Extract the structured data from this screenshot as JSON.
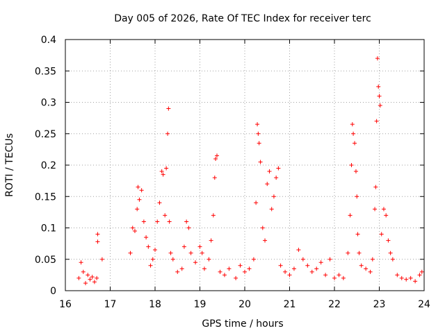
{
  "chart_data": {
    "type": "scatter",
    "title": "Day 005 of 2026, Rate Of TEC Index for receiver terc",
    "xlabel": "GPS time / hours",
    "ylabel": "ROTI / TECUs",
    "xlim": [
      16,
      24
    ],
    "ylim": [
      0,
      0.4
    ],
    "grid": true,
    "x_ticks": [
      16,
      17,
      18,
      19,
      20,
      21,
      22,
      23,
      24
    ],
    "x_tick_labels": [
      "16",
      "17",
      "18",
      "19",
      "20",
      "21",
      "22",
      "23",
      "24"
    ],
    "y_ticks": [
      0,
      0.05,
      0.1,
      0.15,
      0.2,
      0.25,
      0.3,
      0.35,
      0.4
    ],
    "y_tick_labels": [
      "0",
      "0.05",
      "0.1",
      "0.15",
      "0.2",
      "0.25",
      "0.3",
      "0.35",
      "0.4"
    ],
    "marker": "+",
    "color": "#ff0000",
    "series": [
      {
        "name": "ROTI",
        "points": [
          [
            16.3,
            0.02
          ],
          [
            16.35,
            0.045
          ],
          [
            16.4,
            0.03
          ],
          [
            16.45,
            0.012
          ],
          [
            16.5,
            0.025
          ],
          [
            16.55,
            0.018
          ],
          [
            16.6,
            0.022
          ],
          [
            16.65,
            0.014
          ],
          [
            16.7,
            0.02
          ],
          [
            16.72,
            0.09
          ],
          [
            16.72,
            0.078
          ],
          [
            16.82,
            0.05
          ],
          [
            17.45,
            0.06
          ],
          [
            17.5,
            0.1
          ],
          [
            17.55,
            0.095
          ],
          [
            17.6,
            0.13
          ],
          [
            17.62,
            0.165
          ],
          [
            17.65,
            0.145
          ],
          [
            17.7,
            0.16
          ],
          [
            17.75,
            0.11
          ],
          [
            17.8,
            0.085
          ],
          [
            17.85,
            0.07
          ],
          [
            17.9,
            0.04
          ],
          [
            17.95,
            0.05
          ],
          [
            18.0,
            0.065
          ],
          [
            18.05,
            0.11
          ],
          [
            18.1,
            0.14
          ],
          [
            18.15,
            0.19
          ],
          [
            18.18,
            0.185
          ],
          [
            18.22,
            0.12
          ],
          [
            18.25,
            0.195
          ],
          [
            18.28,
            0.25
          ],
          [
            18.3,
            0.29
          ],
          [
            18.32,
            0.11
          ],
          [
            18.35,
            0.06
          ],
          [
            18.4,
            0.05
          ],
          [
            18.5,
            0.03
          ],
          [
            18.6,
            0.035
          ],
          [
            18.65,
            0.07
          ],
          [
            18.7,
            0.11
          ],
          [
            18.75,
            0.1
          ],
          [
            18.8,
            0.06
          ],
          [
            18.9,
            0.045
          ],
          [
            19.0,
            0.07
          ],
          [
            19.05,
            0.06
          ],
          [
            19.1,
            0.035
          ],
          [
            19.2,
            0.05
          ],
          [
            19.25,
            0.08
          ],
          [
            19.3,
            0.12
          ],
          [
            19.33,
            0.18
          ],
          [
            19.35,
            0.21
          ],
          [
            19.38,
            0.215
          ],
          [
            19.45,
            0.03
          ],
          [
            19.55,
            0.025
          ],
          [
            19.65,
            0.035
          ],
          [
            19.8,
            0.02
          ],
          [
            19.9,
            0.04
          ],
          [
            20.0,
            0.03
          ],
          [
            20.1,
            0.035
          ],
          [
            20.2,
            0.05
          ],
          [
            20.25,
            0.14
          ],
          [
            20.28,
            0.265
          ],
          [
            20.3,
            0.25
          ],
          [
            20.32,
            0.235
          ],
          [
            20.35,
            0.205
          ],
          [
            20.4,
            0.1
          ],
          [
            20.45,
            0.08
          ],
          [
            20.5,
            0.17
          ],
          [
            20.55,
            0.19
          ],
          [
            20.6,
            0.13
          ],
          [
            20.65,
            0.15
          ],
          [
            20.7,
            0.18
          ],
          [
            20.75,
            0.195
          ],
          [
            20.8,
            0.04
          ],
          [
            20.9,
            0.03
          ],
          [
            21.0,
            0.025
          ],
          [
            21.1,
            0.035
          ],
          [
            21.2,
            0.065
          ],
          [
            21.3,
            0.05
          ],
          [
            21.4,
            0.04
          ],
          [
            21.5,
            0.03
          ],
          [
            21.6,
            0.035
          ],
          [
            21.7,
            0.045
          ],
          [
            21.8,
            0.025
          ],
          [
            21.9,
            0.05
          ],
          [
            22.0,
            0.02
          ],
          [
            22.1,
            0.025
          ],
          [
            22.2,
            0.02
          ],
          [
            22.3,
            0.06
          ],
          [
            22.35,
            0.12
          ],
          [
            22.38,
            0.2
          ],
          [
            22.4,
            0.265
          ],
          [
            22.42,
            0.25
          ],
          [
            22.45,
            0.235
          ],
          [
            22.48,
            0.19
          ],
          [
            22.5,
            0.15
          ],
          [
            22.52,
            0.09
          ],
          [
            22.55,
            0.06
          ],
          [
            22.6,
            0.04
          ],
          [
            22.7,
            0.035
          ],
          [
            22.8,
            0.03
          ],
          [
            22.85,
            0.05
          ],
          [
            22.9,
            0.13
          ],
          [
            22.92,
            0.165
          ],
          [
            22.94,
            0.27
          ],
          [
            22.96,
            0.37
          ],
          [
            22.98,
            0.325
          ],
          [
            23.0,
            0.31
          ],
          [
            23.02,
            0.295
          ],
          [
            23.05,
            0.09
          ],
          [
            23.1,
            0.13
          ],
          [
            23.15,
            0.12
          ],
          [
            23.2,
            0.08
          ],
          [
            23.25,
            0.06
          ],
          [
            23.3,
            0.05
          ],
          [
            23.4,
            0.025
          ],
          [
            23.5,
            0.02
          ],
          [
            23.6,
            0.018
          ],
          [
            23.7,
            0.02
          ],
          [
            23.8,
            0.015
          ],
          [
            23.9,
            0.025
          ],
          [
            23.95,
            0.03
          ]
        ]
      }
    ]
  }
}
